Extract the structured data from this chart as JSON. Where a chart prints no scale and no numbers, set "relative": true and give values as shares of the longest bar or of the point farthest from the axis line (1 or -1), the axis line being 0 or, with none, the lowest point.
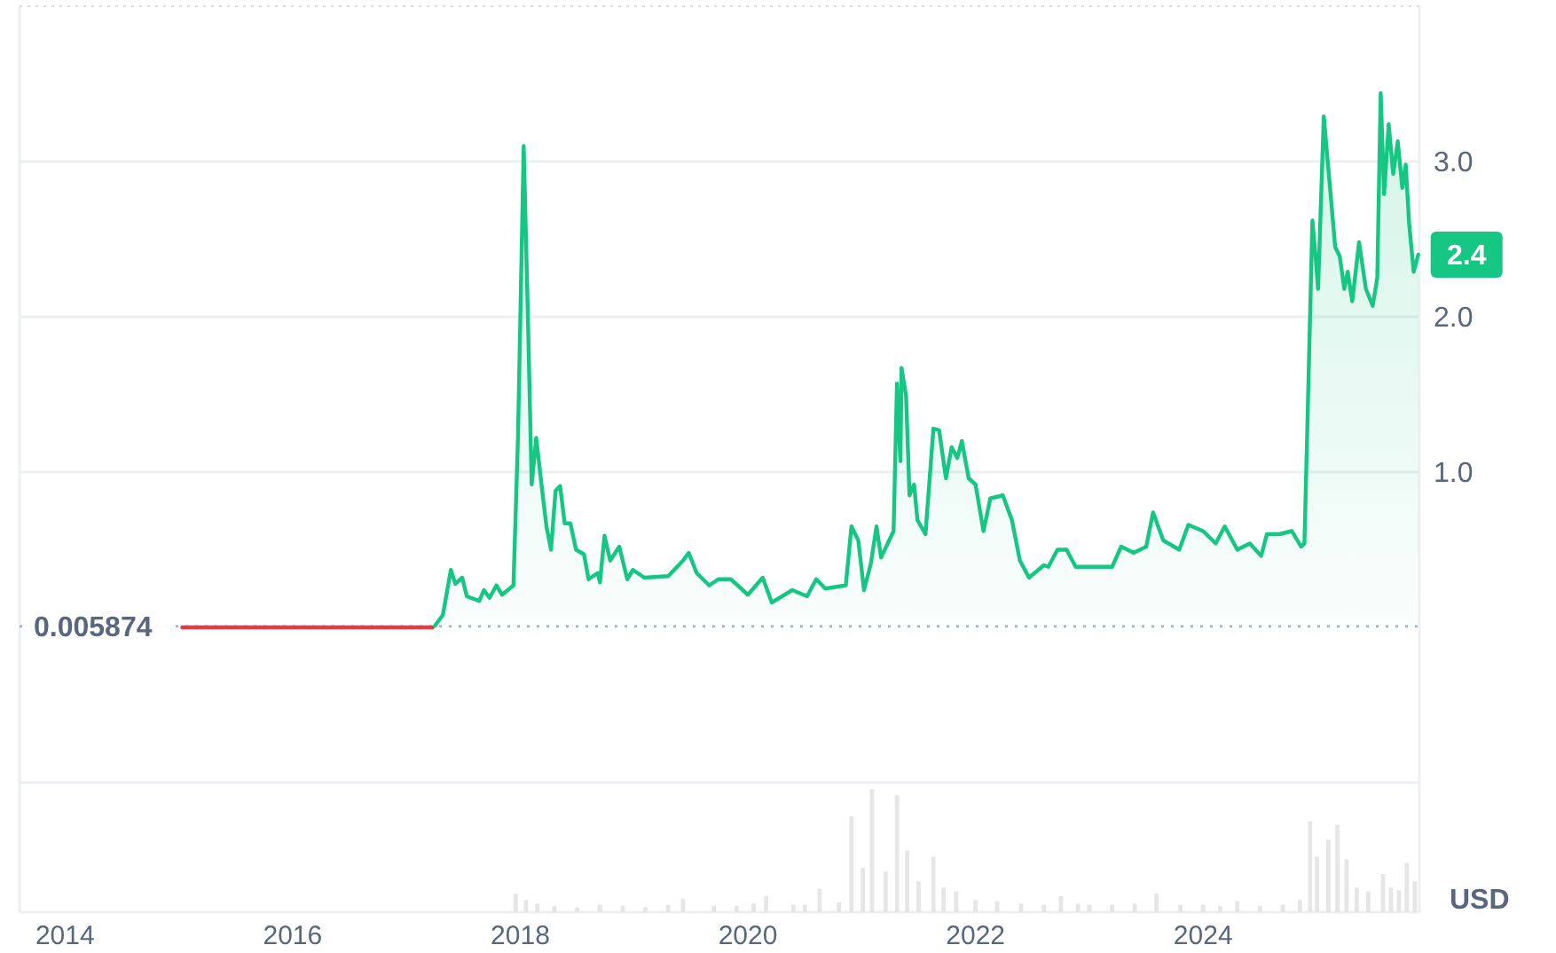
{
  "chart_data": [
    {
      "type": "area",
      "ylabel": "USD",
      "xlim": [
        2013.6,
        2025.9
      ],
      "ylim": [
        -1,
        4
      ],
      "yticks": [
        {
          "value": 1,
          "label": "1.0"
        },
        {
          "value": 2,
          "label": "2.0"
        },
        {
          "value": 3,
          "label": "3.0"
        }
      ],
      "grid": "y",
      "tick_labels": "y",
      "ref_lines": [
        {
          "axis": "y",
          "value": 0.005874,
          "label": "0.005874",
          "color": "#a7b1c2",
          "line_style": "dotted"
        }
      ],
      "annotations": [
        {
          "text": "2.4",
          "x": 2025.89,
          "y": 2.4
        }
      ],
      "series": [
        {
          "type": "line",
          "color": "#ea3943",
          "x": [
            2015.03,
            2015.6,
            2016.2,
            2016.8,
            2017.23
          ],
          "values": [
            0,
            0,
            0,
            0,
            0
          ]
        },
        {
          "color": "#16c784",
          "x": [
            2017.25,
            2017.32,
            2017.39,
            2017.43,
            2017.49,
            2017.53,
            2017.64,
            2017.68,
            2017.73,
            2017.79,
            2017.84,
            2017.94,
            2017.98,
            2018.03,
            2018.07,
            2018.1,
            2018.14,
            2018.18,
            2018.23,
            2018.27,
            2018.31,
            2018.35,
            2018.39,
            2018.44,
            2018.49,
            2018.56,
            2018.6,
            2018.68,
            2018.7,
            2018.74,
            2018.79,
            2018.87,
            2018.94,
            2018.99,
            2019.09,
            2019.3,
            2019.43,
            2019.48,
            2019.55,
            2019.66,
            2019.74,
            2019.85,
            2020.0,
            2020.13,
            2020.21,
            2020.39,
            2020.52,
            2020.6,
            2020.68,
            2020.86,
            2020.91,
            2020.97,
            2021.02,
            2021.08,
            2021.13,
            2021.17,
            2021.28,
            2021.31,
            2021.34,
            2021.35,
            2021.39,
            2021.42,
            2021.46,
            2021.49,
            2021.56,
            2021.63,
            2021.68,
            2021.74,
            2021.79,
            2021.84,
            2021.88,
            2021.94,
            2022.0,
            2022.07,
            2022.13,
            2022.24,
            2022.32,
            2022.39,
            2022.47,
            2022.6,
            2022.64,
            2022.72,
            2022.8,
            2022.88,
            2023.04,
            2023.2,
            2023.28,
            2023.39,
            2023.5,
            2023.56,
            2023.65,
            2023.79,
            2023.87,
            2024.0,
            2024.11,
            2024.19,
            2024.3,
            2024.41,
            2024.51,
            2024.56,
            2024.67,
            2024.78,
            2024.86,
            2024.89,
            2024.92,
            2024.96,
            2024.99,
            2025.01,
            2025.06,
            2025.12,
            2025.16,
            2025.2,
            2025.24,
            2025.27,
            2025.31,
            2025.37,
            2025.43,
            2025.49,
            2025.53,
            2025.56,
            2025.59,
            2025.63,
            2025.67,
            2025.71,
            2025.75,
            2025.78,
            2025.81,
            2025.85,
            2025.89
          ],
          "values": [
            0.01,
            0.08,
            0.37,
            0.28,
            0.32,
            0.2,
            0.17,
            0.24,
            0.19,
            0.27,
            0.21,
            0.27,
            1.23,
            3.1,
            1.91,
            0.92,
            1.22,
            0.96,
            0.65,
            0.5,
            0.88,
            0.91,
            0.67,
            0.67,
            0.5,
            0.47,
            0.31,
            0.35,
            0.29,
            0.59,
            0.43,
            0.52,
            0.31,
            0.37,
            0.32,
            0.33,
            0.43,
            0.48,
            0.35,
            0.27,
            0.31,
            0.31,
            0.21,
            0.32,
            0.16,
            0.24,
            0.2,
            0.31,
            0.25,
            0.27,
            0.65,
            0.56,
            0.24,
            0.41,
            0.65,
            0.45,
            0.62,
            1.57,
            1.07,
            1.67,
            1.49,
            0.85,
            0.92,
            0.69,
            0.6,
            1.28,
            1.27,
            0.96,
            1.16,
            1.09,
            1.2,
            0.96,
            0.92,
            0.62,
            0.83,
            0.85,
            0.69,
            0.43,
            0.32,
            0.4,
            0.39,
            0.5,
            0.5,
            0.39,
            0.39,
            0.39,
            0.52,
            0.48,
            0.52,
            0.74,
            0.56,
            0.5,
            0.66,
            0.62,
            0.54,
            0.65,
            0.5,
            0.54,
            0.46,
            0.6,
            0.6,
            0.62,
            0.52,
            0.54,
            1.42,
            2.62,
            2.37,
            2.18,
            3.29,
            2.79,
            2.45,
            2.39,
            2.18,
            2.29,
            2.1,
            2.48,
            2.18,
            2.07,
            2.25,
            3.44,
            2.79,
            3.24,
            2.92,
            3.13,
            2.83,
            2.98,
            2.6,
            2.29,
            2.4
          ]
        }
      ]
    },
    {
      "type": "bar",
      "relative": true,
      "color": "#e6e6e6",
      "xlim": [
        2013.6,
        2025.9
      ],
      "xticks": [
        2014,
        2016,
        2018,
        2020,
        2022,
        2024
      ],
      "tick_labels": "x",
      "x": [
        2017.96,
        2018.05,
        2018.15,
        2018.3,
        2018.5,
        2018.7,
        2018.9,
        2019.1,
        2019.3,
        2019.43,
        2019.7,
        2019.9,
        2020.05,
        2020.16,
        2020.4,
        2020.5,
        2020.63,
        2020.8,
        2020.91,
        2021.01,
        2021.09,
        2021.21,
        2021.31,
        2021.4,
        2021.5,
        2021.63,
        2021.72,
        2021.83,
        2022.0,
        2022.19,
        2022.4,
        2022.6,
        2022.75,
        2022.9,
        2023.0,
        2023.2,
        2023.4,
        2023.59,
        2023.8,
        2024.0,
        2024.15,
        2024.3,
        2024.5,
        2024.7,
        2024.85,
        2024.94,
        2025.0,
        2025.1,
        2025.18,
        2025.26,
        2025.35,
        2025.45,
        2025.58,
        2025.65,
        2025.72,
        2025.79,
        2025.86
      ],
      "values": [
        0.15,
        0.1,
        0.07,
        0.05,
        0.04,
        0.06,
        0.05,
        0.04,
        0.06,
        0.11,
        0.05,
        0.05,
        0.07,
        0.13,
        0.06,
        0.06,
        0.19,
        0.08,
        0.78,
        0.36,
        1,
        0.33,
        0.95,
        0.5,
        0.25,
        0.45,
        0.2,
        0.17,
        0.1,
        0.09,
        0.07,
        0.06,
        0.13,
        0.07,
        0.06,
        0.06,
        0.07,
        0.15,
        0.06,
        0.06,
        0.05,
        0.09,
        0.05,
        0.06,
        0.1,
        0.74,
        0.45,
        0.59,
        0.71,
        0.43,
        0.2,
        0.17,
        0.31,
        0.2,
        0.18,
        0.4,
        0.25
      ]
    }
  ]
}
